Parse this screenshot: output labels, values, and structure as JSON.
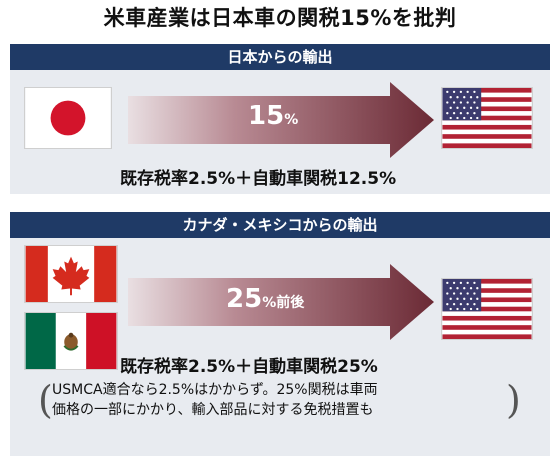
{
  "title": "米車産業は日本車の関税15%を批判",
  "japan_section": {
    "header": "日本からの輸出",
    "arrow_value": "15",
    "arrow_unit": "%",
    "rate_text": "既存税率2.5%＋自動車関税12.5%"
  },
  "canada_mexico_section": {
    "header": "カナダ・メキシコからの輸出",
    "arrow_value": "25",
    "arrow_unit": "%前後",
    "rate_text": "既存税率2.5%＋自動車関税25%",
    "note_lines": [
      "USMCA適合なら2.5%はかからず。25%関税は車両",
      "価格の一部にかかり、輸入部品に対する免税措置も"
    ]
  },
  "colors": {
    "header_bg": "#1f3a66",
    "panel_bg": "#e8ebf0",
    "arrow_dark": "#6b2a35",
    "arrow_light": "#e9dfe2"
  }
}
